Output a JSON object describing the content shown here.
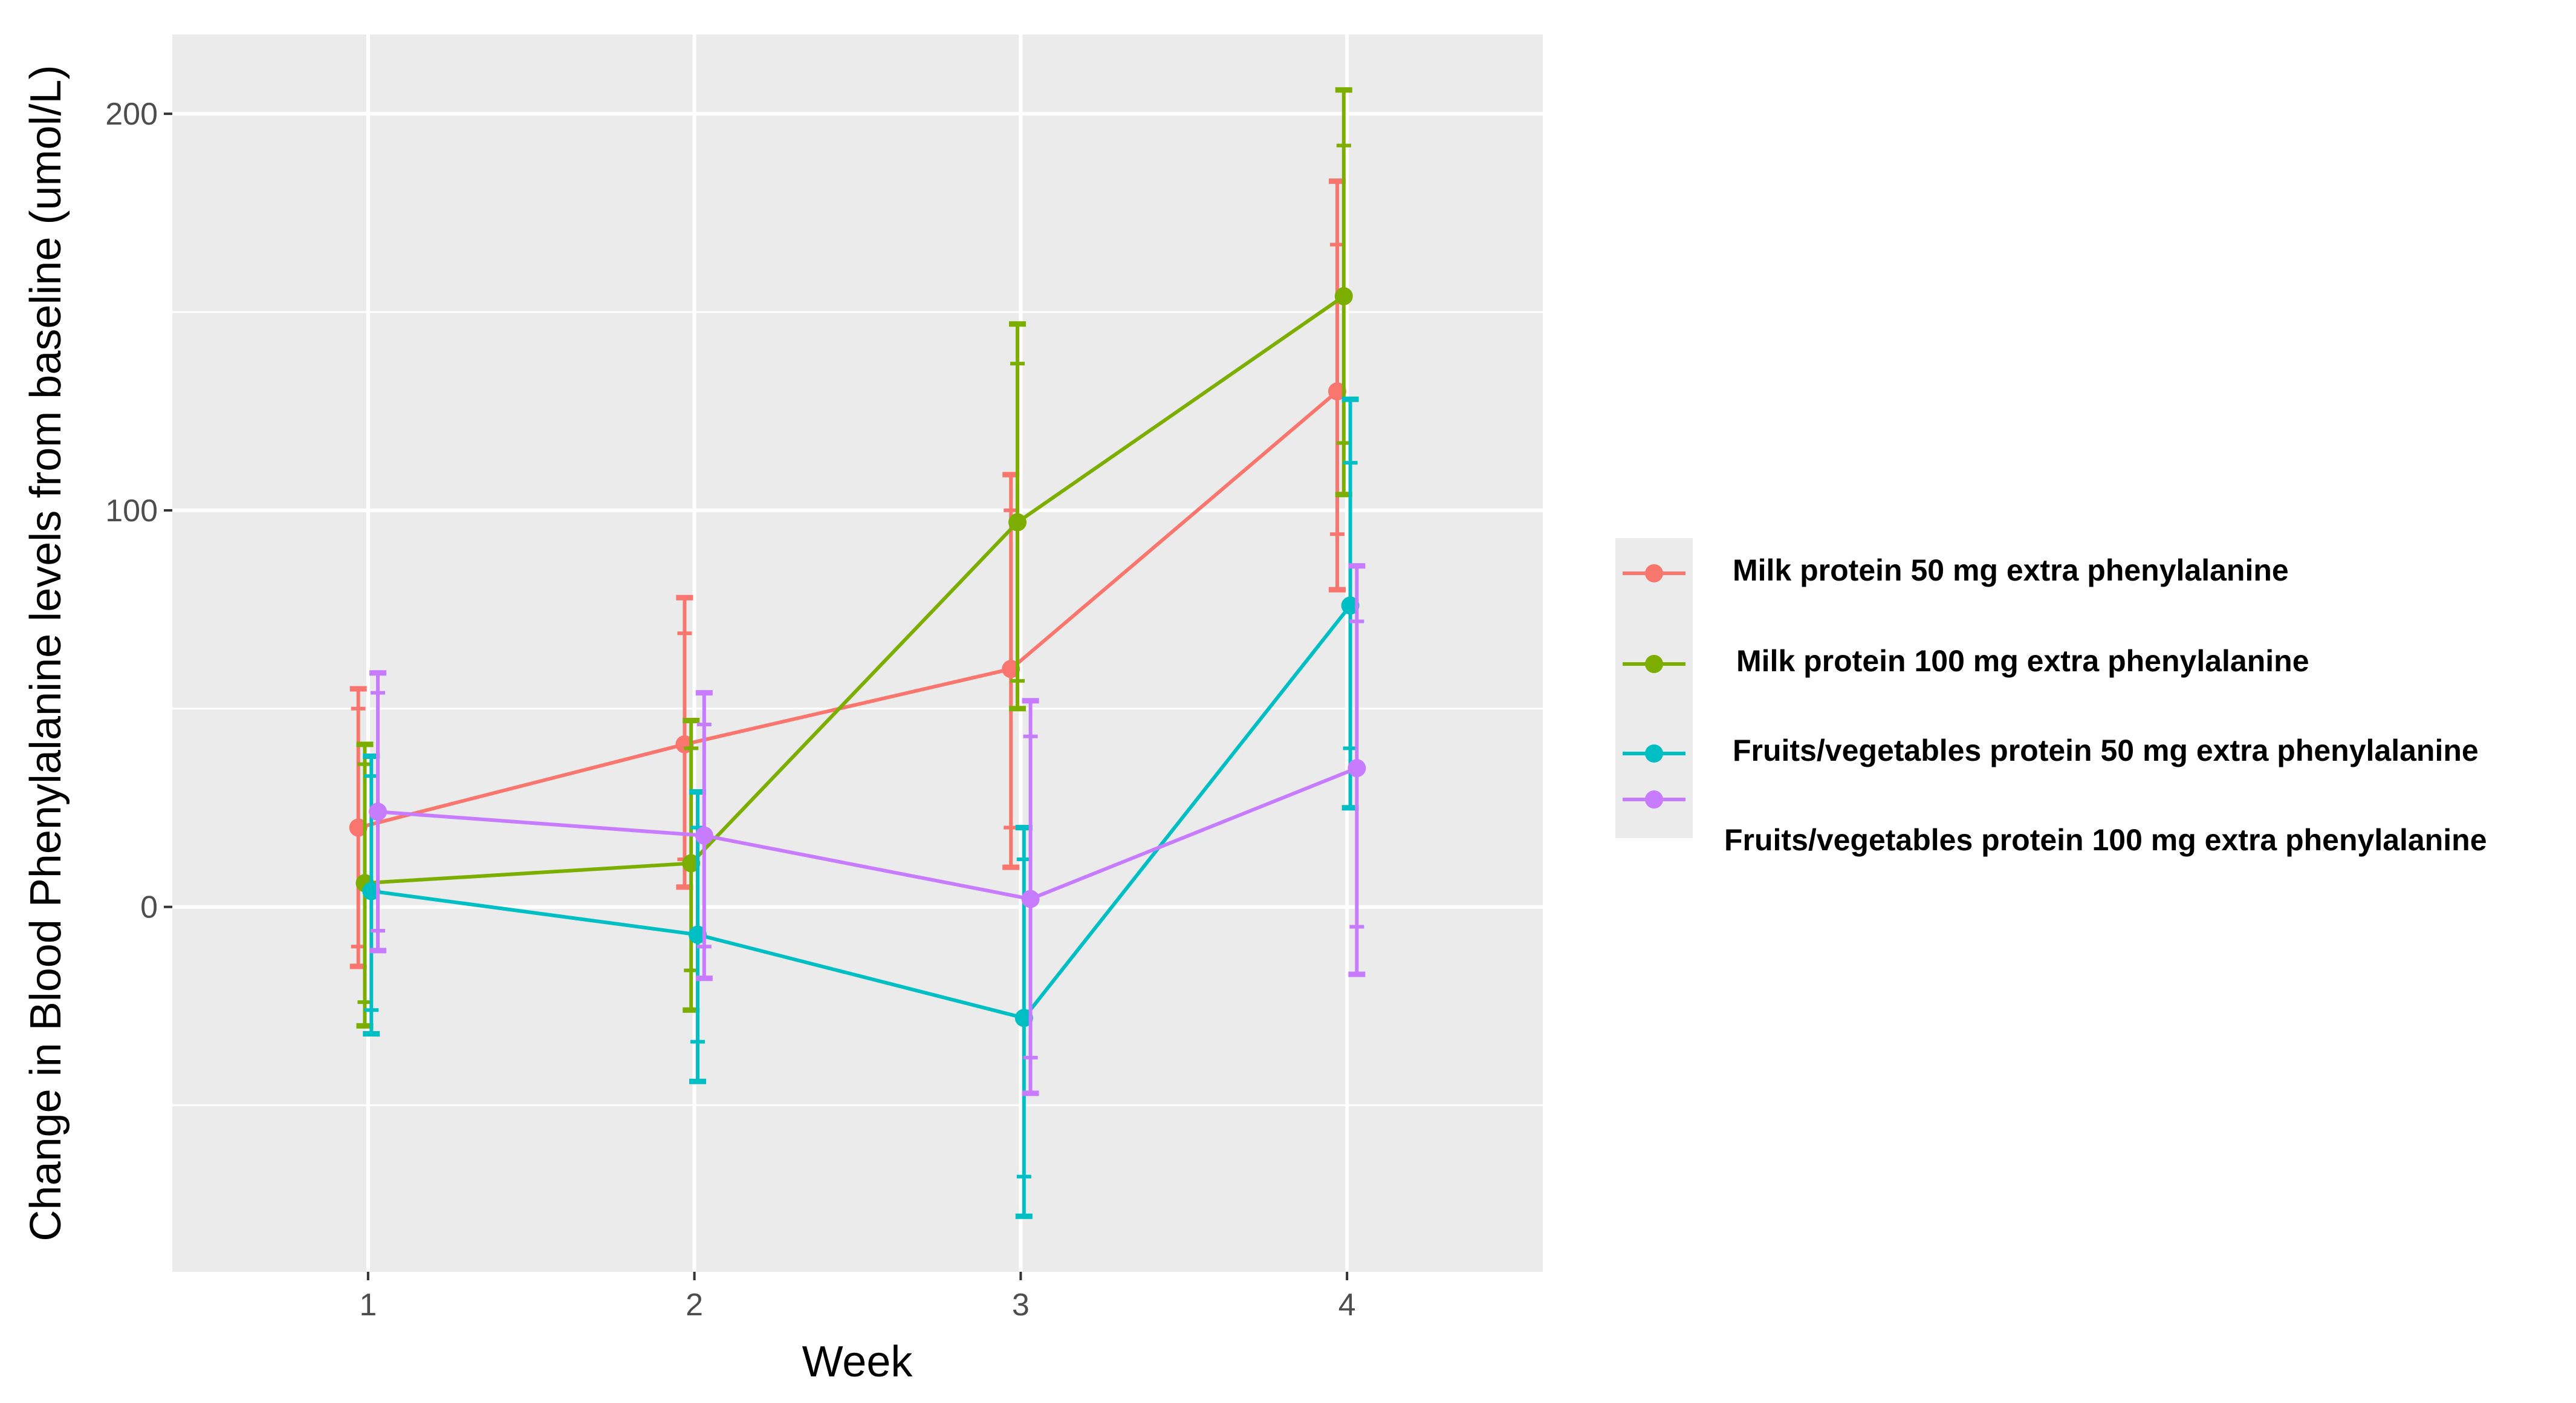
{
  "chart_data": {
    "type": "line",
    "title": "",
    "xlabel": "Week",
    "ylabel": "Change in Blood Phenylalanine levels from baseline (umol/L)",
    "x": [
      1,
      2,
      3,
      4
    ],
    "x_tick_labels": [
      "1",
      "2",
      "3",
      "4"
    ],
    "xlim": [
      0.4,
      4.6
    ],
    "ylim": [
      -92,
      220
    ],
    "y_ticks": [
      0,
      100,
      200
    ],
    "y_tick_labels": [
      "0",
      "100",
      "200"
    ],
    "grid": true,
    "legend_position": "right",
    "series": [
      {
        "name": "Milk protein 50 mg extra phenylalanine",
        "color": "#f8766d",
        "offset": -0.03,
        "values": [
          20,
          41,
          60,
          130
        ],
        "error_bars": [
          {
            "lower": -15,
            "upper": 55,
            "inner_lower": -10,
            "inner_upper": 50
          },
          {
            "lower": 5,
            "upper": 78,
            "inner_lower": 12,
            "inner_upper": 69
          },
          {
            "lower": 10,
            "upper": 109,
            "inner_lower": 20,
            "inner_upper": 100
          },
          {
            "lower": 80,
            "upper": 183,
            "inner_lower": 94,
            "inner_upper": 167
          }
        ]
      },
      {
        "name": "Milk protein 100 mg extra phenylalanine",
        "color": "#7cae00",
        "offset": -0.01,
        "values": [
          6,
          11,
          97,
          154
        ],
        "error_bars": [
          {
            "lower": -30,
            "upper": 41,
            "inner_lower": -24,
            "inner_upper": 36
          },
          {
            "lower": -26,
            "upper": 47,
            "inner_lower": -16,
            "inner_upper": 40
          },
          {
            "lower": 50,
            "upper": 147,
            "inner_lower": 57,
            "inner_upper": 137
          },
          {
            "lower": 104,
            "upper": 206,
            "inner_lower": 117,
            "inner_upper": 192
          }
        ]
      },
      {
        "name": "Fruits/vegetables protein 50 mg extra phenylalanine",
        "color": "#00bfc4",
        "offset": 0.01,
        "values": [
          4,
          -7,
          -28,
          76
        ],
        "error_bars": [
          {
            "lower": -32,
            "upper": 38,
            "inner_lower": -26,
            "inner_upper": 33
          },
          {
            "lower": -44,
            "upper": 29,
            "inner_lower": -34,
            "inner_upper": 20
          },
          {
            "lower": -78,
            "upper": 20,
            "inner_lower": -68,
            "inner_upper": 12
          },
          {
            "lower": 25,
            "upper": 128,
            "inner_lower": 40,
            "inner_upper": 112
          }
        ]
      },
      {
        "name": "Fruits/vegetables protein 100 mg extra phenylalanine",
        "color": "#c77cff",
        "offset": 0.03,
        "values": [
          24,
          18,
          2,
          35
        ],
        "error_bars": [
          {
            "lower": -11,
            "upper": 59,
            "inner_lower": -6,
            "inner_upper": 54
          },
          {
            "lower": -18,
            "upper": 54,
            "inner_lower": -10,
            "inner_upper": 46
          },
          {
            "lower": -47,
            "upper": 52,
            "inner_lower": -38,
            "inner_upper": 43
          },
          {
            "lower": -17,
            "upper": 86,
            "inner_lower": -5,
            "inner_upper": 72
          }
        ]
      }
    ]
  }
}
